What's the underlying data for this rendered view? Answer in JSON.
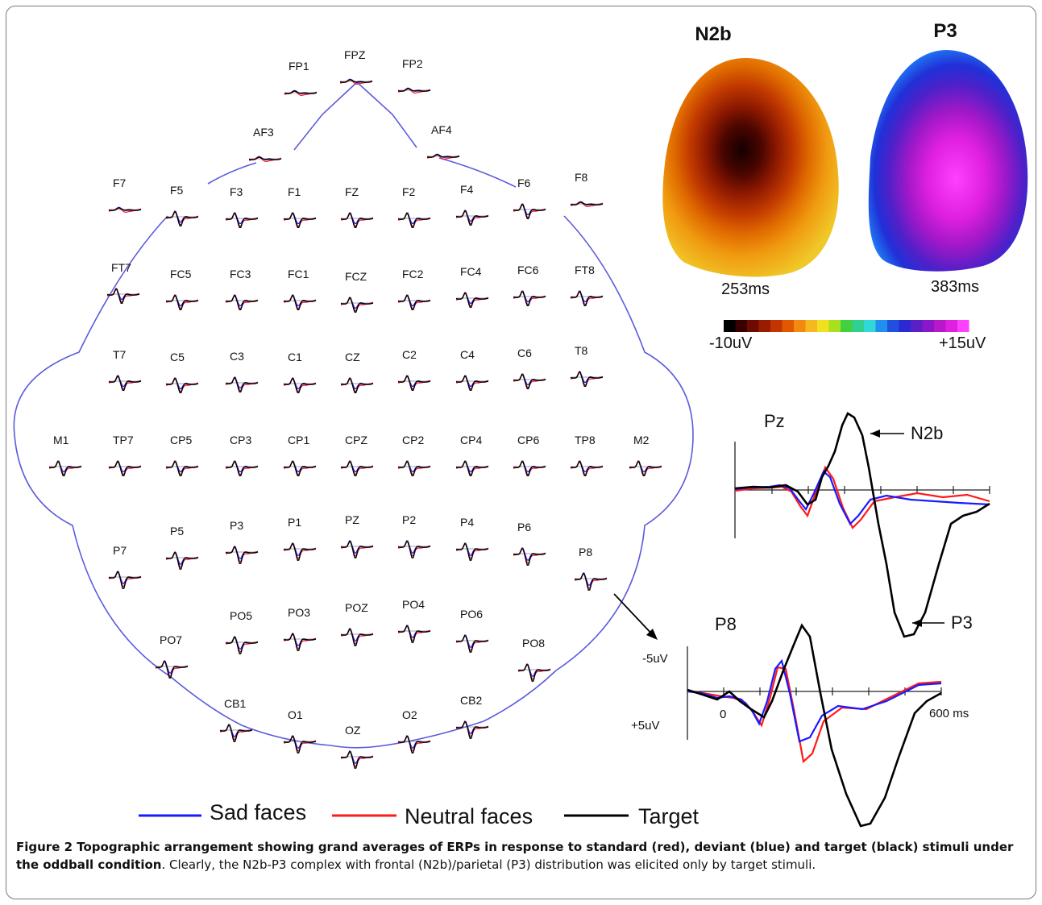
{
  "figure": {
    "maps": [
      {
        "title": "N2b",
        "time": "253ms"
      },
      {
        "title": "P3",
        "time": "383ms"
      }
    ],
    "colorbar": {
      "min_label": "-10uV",
      "max_label": "+15uV",
      "colors": [
        "#000000",
        "#3a0000",
        "#6e0b00",
        "#9a1c00",
        "#c23400",
        "#e25800",
        "#f08a10",
        "#f5b820",
        "#f0e020",
        "#a8e020",
        "#40d040",
        "#30d090",
        "#30d8d8",
        "#2090f0",
        "#2050e0",
        "#2a2ad0",
        "#5a20c8",
        "#8a18c8",
        "#b818c8",
        "#e020e0",
        "#ff40ff"
      ]
    },
    "electrodes": [
      "FP1",
      "FPZ",
      "FP2",
      "AF3",
      "AF4",
      "F7",
      "F5",
      "F3",
      "F1",
      "FZ",
      "F2",
      "F4",
      "F6",
      "F8",
      "FT7",
      "FC5",
      "FC3",
      "FC1",
      "FCZ",
      "FC2",
      "FC4",
      "FC6",
      "FT8",
      "T7",
      "C5",
      "C3",
      "C1",
      "CZ",
      "C2",
      "C4",
      "C6",
      "T8",
      "M1",
      "TP7",
      "CP5",
      "CP3",
      "CP1",
      "CPZ",
      "CP2",
      "CP4",
      "CP6",
      "TP8",
      "M2",
      "P7",
      "P5",
      "P3",
      "P1",
      "PZ",
      "P2",
      "P4",
      "P6",
      "P8",
      "PO7",
      "PO5",
      "PO3",
      "POZ",
      "PO4",
      "PO6",
      "PO8",
      "CB1",
      "O1",
      "OZ",
      "O2",
      "CB2"
    ],
    "enlarged_pz": {
      "channel": "Pz",
      "n2b_label": "N2b",
      "p3_label": "P3"
    },
    "enlarged_p8": {
      "channel": "P8",
      "y_top": "-5uV",
      "y_bottom": "+5uV",
      "x_start": "0",
      "x_end": "600 ms"
    },
    "legend": [
      {
        "label": "Sad faces",
        "color": "#1a1aff"
      },
      {
        "label": "Neutral faces",
        "color": "#ff1a1a"
      },
      {
        "label": "Target",
        "color": "#000000"
      }
    ],
    "head_outline_color": "#5b5bdc"
  },
  "caption": {
    "bold": "Figure 2 Topographic arrangement showing grand averages of ERPs in response to standard (red), deviant (blue) and target (black) stimuli under the oddball condition",
    "rest": ". Clearly, the N2b-P3 complex with frontal (N2b)/parietal (P3) distribution was elicited only by target stimuli."
  }
}
